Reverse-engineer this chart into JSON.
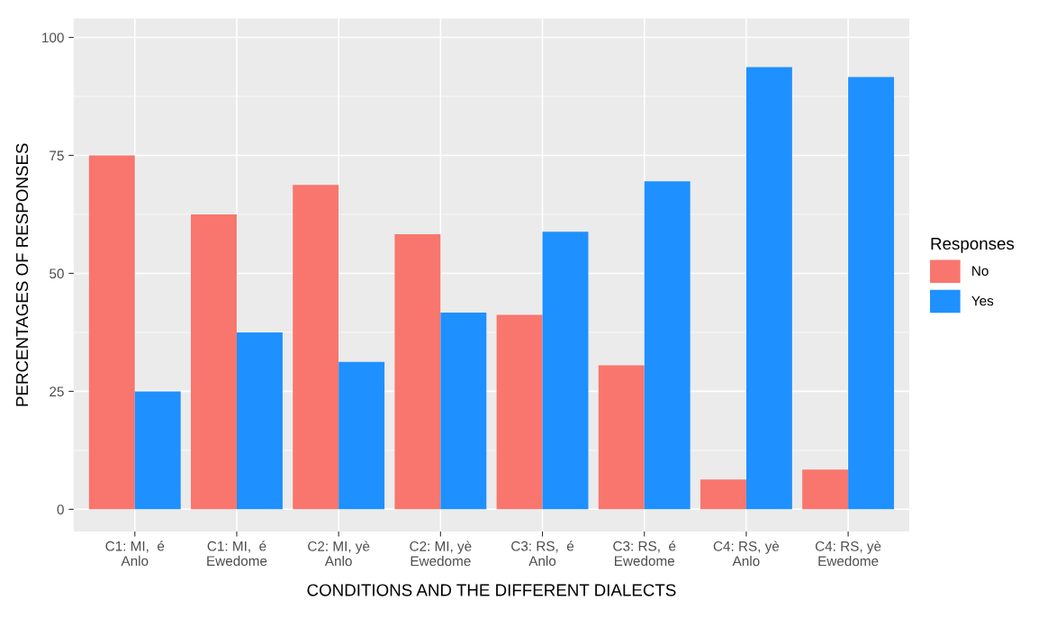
{
  "chart_data": {
    "type": "bar",
    "categories": [
      "C1: MI,  é\nAnlo",
      "C1: MI,  é\nEwedome",
      "C2: MI, yè\nAnlo",
      "C2: MI, yè\nEwedome",
      "C3: RS,  é\nAnlo",
      "C3: RS,  é\nEwedome",
      "C4: RS, yè\nAnlo",
      "C4: RS, yè\nEwedome"
    ],
    "series": [
      {
        "name": "No",
        "color": "#f8766d",
        "values": [
          75,
          62.5,
          68.75,
          58.3,
          41.2,
          30.5,
          6.3,
          8.4
        ]
      },
      {
        "name": "Yes",
        "color": "#1e90ff",
        "values": [
          25,
          37.5,
          31.25,
          41.7,
          58.8,
          69.5,
          93.7,
          91.6
        ]
      }
    ],
    "xlabel": "CONDITIONS AND THE DIFFERENT DIALECTS",
    "ylabel": "PERCENTAGES OF RESPONSES",
    "legend_title": "Responses",
    "legend": "right",
    "ylim": [
      -4.7,
      104
    ],
    "yticks": [
      0,
      25,
      50,
      75,
      100
    ],
    "grid": true
  }
}
